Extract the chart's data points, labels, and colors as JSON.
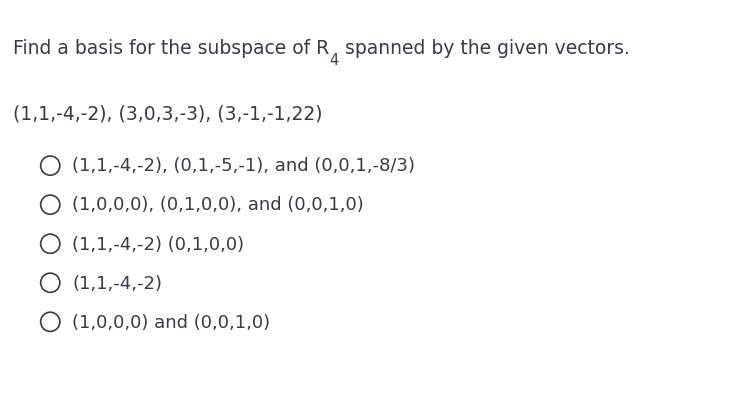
{
  "background_color": "#ffffff",
  "title_main": "Find a basis for the subspace of R",
  "title_sup": "4",
  "title_rest": " spanned by the given vectors.",
  "vectors_line": "(1,1,-4,-2), (3,0,3,-3), (3,-1,-1,22)",
  "options": [
    "(1,1,-4,-2), (0,1,-5,-1), and (0,0,1,-8/3)",
    "(1,0,0,0), (0,1,0,0), and (0,0,1,0)",
    "(1,1,-4,-2) (0,1,0,0)",
    "(1,1,-4,-2)",
    "(1,0,0,0) and (0,0,1,0)"
  ],
  "text_color": "#3a3a4a",
  "font_size_title": 13.5,
  "font_size_vectors": 13.5,
  "font_size_options": 13.0,
  "fig_width": 7.39,
  "fig_height": 4.11
}
